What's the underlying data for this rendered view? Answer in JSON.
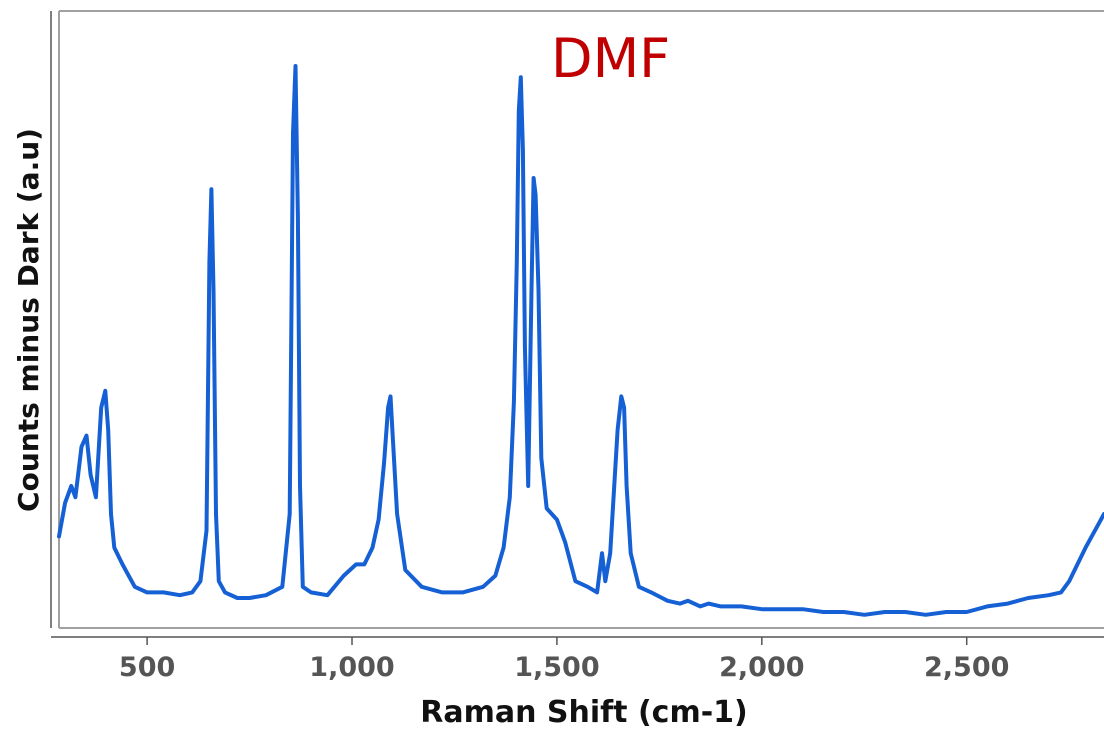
{
  "chart_data": {
    "type": "line",
    "title": "DMF",
    "xlabel": "Raman Shift (cm-1)",
    "ylabel": "Counts minus Dark (a.u)",
    "xlim": [
      285,
      2835
    ],
    "ylim": [
      0,
      100
    ],
    "x_ticks": [
      500,
      1000,
      1500,
      2000,
      2500
    ],
    "x_tick_labels": [
      "500",
      "1,000",
      "1,500",
      "2,000",
      "2,500"
    ],
    "y_ticks_shown": false,
    "grid": false,
    "colors": {
      "line": "#1560d4",
      "title": "#c00000",
      "frame": "#a0a0a0"
    },
    "series": [
      {
        "x": [
          285,
          300,
          315,
          325,
          340,
          352,
          362,
          375,
          388,
          398,
          405,
          412,
          420,
          440,
          470,
          500,
          540,
          580,
          610,
          630,
          645,
          652,
          657,
          662,
          668,
          675,
          690,
          720,
          750,
          790,
          830,
          848,
          856,
          862,
          868,
          873,
          880,
          900,
          940,
          980,
          1010,
          1030,
          1050,
          1065,
          1078,
          1088,
          1094,
          1100,
          1110,
          1130,
          1170,
          1220,
          1270,
          1320,
          1350,
          1370,
          1385,
          1395,
          1402,
          1407,
          1412,
          1417,
          1422,
          1430,
          1438,
          1443,
          1448,
          1455,
          1462,
          1475,
          1500,
          1520,
          1545,
          1575,
          1598,
          1610,
          1618,
          1630,
          1648,
          1657,
          1664,
          1670,
          1680,
          1700,
          1730,
          1770,
          1800,
          1820,
          1850,
          1870,
          1900,
          1950,
          2000,
          2050,
          2100,
          2150,
          2200,
          2250,
          2300,
          2350,
          2400,
          2450,
          2500,
          2550,
          2600,
          2650,
          2700,
          2730,
          2750,
          2770,
          2790,
          2805,
          2820,
          2835
        ],
        "y": [
          11,
          17,
          20,
          18,
          27,
          29,
          22,
          18,
          34,
          37,
          30,
          15,
          9,
          6,
          2,
          1,
          1,
          0.5,
          1,
          3,
          12,
          60,
          73,
          55,
          15,
          3,
          1,
          0,
          0,
          0.5,
          2,
          15,
          83,
          95,
          68,
          20,
          2,
          1,
          0.5,
          4,
          6,
          6,
          9,
          14,
          24,
          34,
          36,
          28,
          15,
          5,
          2,
          1,
          1,
          2,
          4,
          9,
          18,
          35,
          60,
          87,
          93,
          80,
          45,
          20,
          55,
          75,
          72,
          55,
          25,
          16,
          14,
          10,
          3,
          2,
          1,
          8,
          3,
          8,
          30,
          36,
          34,
          20,
          8,
          2,
          1,
          -0.5,
          -1,
          -0.5,
          -1.5,
          -1,
          -1.5,
          -1.5,
          -2,
          -2,
          -2,
          -2.5,
          -2.5,
          -3,
          -2.5,
          -2.5,
          -3,
          -2.5,
          -2.5,
          -1.5,
          -1,
          0,
          0.5,
          1,
          3,
          6,
          9,
          11,
          13,
          15
        ]
      }
    ]
  }
}
